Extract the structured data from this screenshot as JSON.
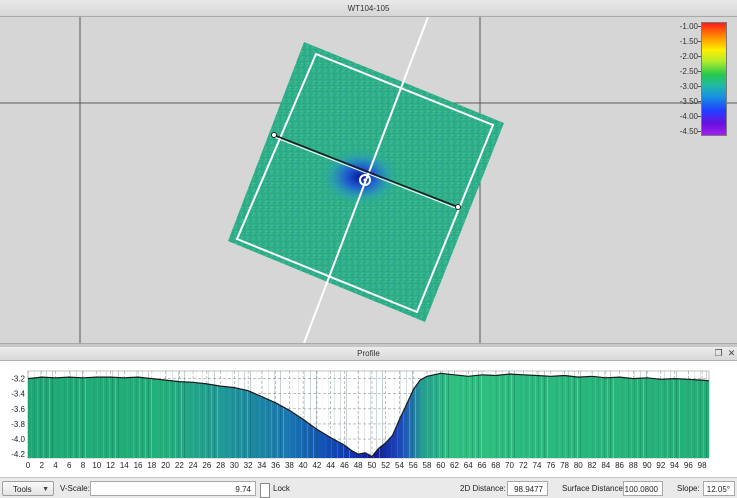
{
  "window": {
    "title": "WT104-105"
  },
  "legend": {
    "labels": [
      "-1.00",
      "-1.50",
      "-2.00",
      "-2.50",
      "-3.00",
      "-3.50",
      "-4.00",
      "-4.50"
    ]
  },
  "profile_panel": {
    "title": "Profile",
    "restore_icon": "restore-icon",
    "close_icon": "close-icon"
  },
  "chart_data": {
    "type": "area",
    "x_ticks": [
      "0",
      "2",
      "4",
      "6",
      "8",
      "10",
      "12",
      "14",
      "16",
      "18",
      "20",
      "22",
      "24",
      "26",
      "28",
      "30",
      "32",
      "34",
      "36",
      "38",
      "40",
      "42",
      "44",
      "46",
      "48",
      "50",
      "52",
      "54",
      "56",
      "58",
      "60",
      "62",
      "64",
      "66",
      "68",
      "70",
      "72",
      "74",
      "76",
      "78",
      "80",
      "82",
      "84",
      "86",
      "88",
      "90",
      "92",
      "94",
      "96",
      "98"
    ],
    "y_ticks": [
      "-3.2",
      "-3.4",
      "-3.6",
      "-3.8",
      "-4.0",
      "-4.2"
    ],
    "xlim": [
      0,
      99
    ],
    "ylim": [
      -4.25,
      -3.1
    ],
    "grid": true,
    "series": [
      {
        "x": [
          0,
          2,
          4,
          6,
          8,
          10,
          12,
          14,
          16,
          18,
          20,
          22,
          24,
          26,
          28,
          30,
          32,
          34,
          36,
          38,
          40,
          42,
          44,
          46,
          47,
          48,
          49,
          50,
          51,
          52,
          53,
          54,
          55,
          56,
          57,
          58,
          60,
          62,
          64,
          66,
          68,
          70,
          72,
          74,
          76,
          78,
          80,
          82,
          84,
          86,
          88,
          90,
          92,
          94,
          96,
          98,
          99
        ],
        "y": [
          -3.2,
          -3.18,
          -3.19,
          -3.18,
          -3.19,
          -3.18,
          -3.18,
          -3.19,
          -3.18,
          -3.2,
          -3.22,
          -3.24,
          -3.25,
          -3.27,
          -3.3,
          -3.32,
          -3.36,
          -3.44,
          -3.52,
          -3.62,
          -3.74,
          -3.87,
          -3.98,
          -4.08,
          -4.15,
          -4.2,
          -4.18,
          -4.23,
          -4.12,
          -4.05,
          -3.95,
          -3.74,
          -3.55,
          -3.35,
          -3.22,
          -3.17,
          -3.13,
          -3.15,
          -3.17,
          -3.15,
          -3.16,
          -3.14,
          -3.15,
          -3.16,
          -3.17,
          -3.16,
          -3.18,
          -3.17,
          -3.19,
          -3.18,
          -3.2,
          -3.19,
          -3.21,
          -3.2,
          -3.21,
          -3.22,
          -3.23
        ]
      }
    ]
  },
  "toolbar": {
    "tools_label": "Tools",
    "vscale_label": "V-Scale:",
    "vscale_value": "9.74",
    "lock_label": "Lock",
    "distance_2d_label": "2D Distance:",
    "distance_2d_value": "98.9477",
    "surface_distance_label": "Surface Distance:",
    "surface_distance_value": "100.0800",
    "slope_label": "Slope:",
    "slope_value": "12.05°"
  }
}
